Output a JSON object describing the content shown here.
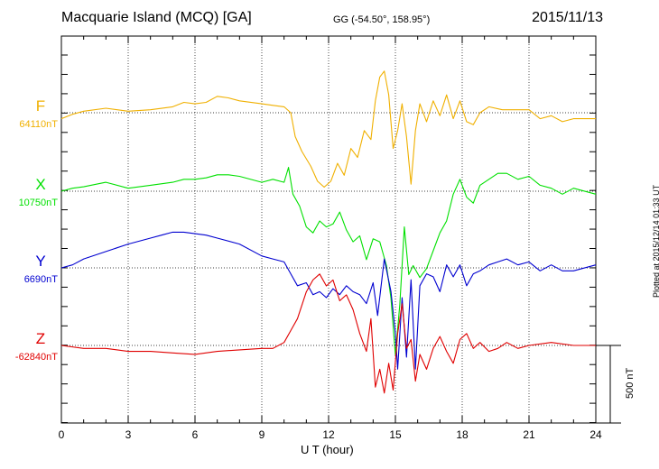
{
  "header": {
    "title": "Macquarie Island (MCQ)  [GA]",
    "coords": "GG (-54.50°, 158.95°)",
    "date": "2015/11/13"
  },
  "footer": {
    "plotted": "Plotted at 2015/12/14 01:33 UT"
  },
  "chart_data": {
    "type": "line",
    "title": "Macquarie Island (MCQ)  [GA]",
    "xlabel": "U T (hour)",
    "xlim": [
      0,
      24
    ],
    "xticks": [
      0,
      3,
      6,
      9,
      12,
      15,
      18,
      21,
      24
    ],
    "grid": true,
    "scale_bar": {
      "label": "500 nT",
      "value_nT": 500
    },
    "series": [
      {
        "name": "F",
        "baseline_label": "64110nT",
        "baseline_nT": 64110,
        "color": "#f0b000",
        "points": [
          [
            0,
            -20
          ],
          [
            0.5,
            -5
          ],
          [
            1,
            5
          ],
          [
            2,
            15
          ],
          [
            3,
            5
          ],
          [
            4,
            10
          ],
          [
            5,
            20
          ],
          [
            5.5,
            35
          ],
          [
            6,
            30
          ],
          [
            6.5,
            35
          ],
          [
            7,
            55
          ],
          [
            7.5,
            50
          ],
          [
            8,
            40
          ],
          [
            9,
            30
          ],
          [
            9.5,
            25
          ],
          [
            10,
            20
          ],
          [
            10.3,
            0
          ],
          [
            10.5,
            -80
          ],
          [
            10.8,
            -130
          ],
          [
            11.2,
            -180
          ],
          [
            11.5,
            -230
          ],
          [
            11.8,
            -250
          ],
          [
            12.1,
            -230
          ],
          [
            12.4,
            -170
          ],
          [
            12.7,
            -210
          ],
          [
            13,
            -120
          ],
          [
            13.3,
            -150
          ],
          [
            13.6,
            -60
          ],
          [
            13.9,
            -90
          ],
          [
            14.1,
            40
          ],
          [
            14.3,
            120
          ],
          [
            14.5,
            140
          ],
          [
            14.7,
            60
          ],
          [
            14.9,
            -120
          ],
          [
            15.1,
            -60
          ],
          [
            15.3,
            30
          ],
          [
            15.5,
            -80
          ],
          [
            15.7,
            -240
          ],
          [
            15.9,
            -60
          ],
          [
            16.1,
            30
          ],
          [
            16.4,
            -30
          ],
          [
            16.7,
            40
          ],
          [
            17,
            -10
          ],
          [
            17.3,
            60
          ],
          [
            17.6,
            -20
          ],
          [
            17.9,
            40
          ],
          [
            18.2,
            -30
          ],
          [
            18.5,
            -40
          ],
          [
            18.8,
            0
          ],
          [
            19.2,
            20
          ],
          [
            19.8,
            10
          ],
          [
            20.5,
            10
          ],
          [
            21,
            10
          ],
          [
            21.5,
            -20
          ],
          [
            22,
            -10
          ],
          [
            22.5,
            -30
          ],
          [
            23,
            -20
          ],
          [
            24,
            -20
          ]
        ]
      },
      {
        "name": "X",
        "baseline_label": "10750nT",
        "baseline_nT": 10750,
        "color": "#00e000",
        "points": [
          [
            0,
            0
          ],
          [
            0.5,
            10
          ],
          [
            1,
            15
          ],
          [
            2,
            30
          ],
          [
            3,
            10
          ],
          [
            4,
            20
          ],
          [
            5,
            30
          ],
          [
            5.5,
            40
          ],
          [
            6,
            40
          ],
          [
            6.5,
            45
          ],
          [
            7,
            55
          ],
          [
            7.5,
            55
          ],
          [
            8,
            50
          ],
          [
            9,
            30
          ],
          [
            9.5,
            40
          ],
          [
            10,
            30
          ],
          [
            10.2,
            80
          ],
          [
            10.4,
            -10
          ],
          [
            10.7,
            -50
          ],
          [
            11,
            -120
          ],
          [
            11.3,
            -140
          ],
          [
            11.6,
            -100
          ],
          [
            11.9,
            -120
          ],
          [
            12.2,
            -110
          ],
          [
            12.5,
            -70
          ],
          [
            12.8,
            -130
          ],
          [
            13.1,
            -170
          ],
          [
            13.4,
            -150
          ],
          [
            13.7,
            -230
          ],
          [
            14,
            -160
          ],
          [
            14.3,
            -170
          ],
          [
            14.6,
            -250
          ],
          [
            14.8,
            -360
          ],
          [
            15,
            -550
          ],
          [
            15.2,
            -380
          ],
          [
            15.4,
            -120
          ],
          [
            15.6,
            -280
          ],
          [
            15.8,
            -250
          ],
          [
            16.1,
            -290
          ],
          [
            16.4,
            -260
          ],
          [
            16.7,
            -200
          ],
          [
            17,
            -140
          ],
          [
            17.3,
            -100
          ],
          [
            17.6,
            -10
          ],
          [
            17.9,
            40
          ],
          [
            18.2,
            -20
          ],
          [
            18.5,
            -40
          ],
          [
            18.8,
            20
          ],
          [
            19.2,
            40
          ],
          [
            19.6,
            60
          ],
          [
            20,
            60
          ],
          [
            20.5,
            40
          ],
          [
            21,
            50
          ],
          [
            21.5,
            20
          ],
          [
            22,
            10
          ],
          [
            22.5,
            -10
          ],
          [
            23,
            10
          ],
          [
            24,
            -10
          ]
        ]
      },
      {
        "name": "Y",
        "baseline_label": "6690nT",
        "baseline_nT": 6690,
        "color": "#0000d0",
        "points": [
          [
            0,
            0
          ],
          [
            0.5,
            10
          ],
          [
            1,
            30
          ],
          [
            2,
            55
          ],
          [
            3,
            80
          ],
          [
            4,
            100
          ],
          [
            4.5,
            110
          ],
          [
            5,
            120
          ],
          [
            5.5,
            120
          ],
          [
            6,
            115
          ],
          [
            6.5,
            110
          ],
          [
            7,
            100
          ],
          [
            8,
            80
          ],
          [
            9,
            40
          ],
          [
            9.5,
            30
          ],
          [
            10,
            20
          ],
          [
            10.3,
            -20
          ],
          [
            10.6,
            -60
          ],
          [
            11,
            -50
          ],
          [
            11.3,
            -90
          ],
          [
            11.6,
            -80
          ],
          [
            11.9,
            -100
          ],
          [
            12.2,
            -70
          ],
          [
            12.5,
            -90
          ],
          [
            12.8,
            -60
          ],
          [
            13.1,
            -80
          ],
          [
            13.4,
            -90
          ],
          [
            13.7,
            -120
          ],
          [
            14,
            -50
          ],
          [
            14.2,
            -160
          ],
          [
            14.5,
            30
          ],
          [
            14.8,
            -80
          ],
          [
            15,
            -220
          ],
          [
            15.1,
            -340
          ],
          [
            15.3,
            -100
          ],
          [
            15.5,
            -300
          ],
          [
            15.7,
            -40
          ],
          [
            15.9,
            -340
          ],
          [
            16.1,
            -60
          ],
          [
            16.4,
            -20
          ],
          [
            16.7,
            -30
          ],
          [
            17,
            -80
          ],
          [
            17.3,
            10
          ],
          [
            17.6,
            -30
          ],
          [
            17.9,
            10
          ],
          [
            18.2,
            -60
          ],
          [
            18.5,
            -20
          ],
          [
            18.8,
            -10
          ],
          [
            19.2,
            10
          ],
          [
            19.6,
            20
          ],
          [
            20,
            30
          ],
          [
            20.5,
            10
          ],
          [
            21,
            20
          ],
          [
            21.5,
            -10
          ],
          [
            22,
            10
          ],
          [
            22.5,
            -10
          ],
          [
            23,
            -10
          ],
          [
            24,
            10
          ]
        ]
      },
      {
        "name": "Z",
        "baseline_label": "-62840nT",
        "baseline_nT": -62840,
        "color": "#e00000",
        "points": [
          [
            0,
            0
          ],
          [
            1,
            -10
          ],
          [
            2,
            -10
          ],
          [
            3,
            -20
          ],
          [
            4,
            -20
          ],
          [
            5,
            -25
          ],
          [
            6,
            -30
          ],
          [
            7,
            -20
          ],
          [
            8,
            -15
          ],
          [
            9,
            -10
          ],
          [
            9.5,
            -10
          ],
          [
            10,
            10
          ],
          [
            10.3,
            50
          ],
          [
            10.6,
            90
          ],
          [
            11,
            180
          ],
          [
            11.3,
            220
          ],
          [
            11.6,
            240
          ],
          [
            11.9,
            200
          ],
          [
            12.2,
            220
          ],
          [
            12.5,
            150
          ],
          [
            12.8,
            170
          ],
          [
            13.1,
            120
          ],
          [
            13.4,
            40
          ],
          [
            13.7,
            -20
          ],
          [
            13.9,
            90
          ],
          [
            14.1,
            -140
          ],
          [
            14.3,
            -80
          ],
          [
            14.5,
            -160
          ],
          [
            14.7,
            -60
          ],
          [
            14.9,
            -150
          ],
          [
            15.1,
            40
          ],
          [
            15.3,
            140
          ],
          [
            15.5,
            -10
          ],
          [
            15.7,
            20
          ],
          [
            15.9,
            -120
          ],
          [
            16.1,
            -30
          ],
          [
            16.4,
            -80
          ],
          [
            16.7,
            -10
          ],
          [
            17,
            30
          ],
          [
            17.3,
            -20
          ],
          [
            17.6,
            -60
          ],
          [
            17.9,
            20
          ],
          [
            18.2,
            40
          ],
          [
            18.5,
            -10
          ],
          [
            18.8,
            10
          ],
          [
            19.2,
            -20
          ],
          [
            19.6,
            -10
          ],
          [
            20,
            10
          ],
          [
            20.5,
            -10
          ],
          [
            21,
            0
          ],
          [
            22,
            10
          ],
          [
            23,
            0
          ],
          [
            24,
            0
          ]
        ]
      }
    ]
  }
}
